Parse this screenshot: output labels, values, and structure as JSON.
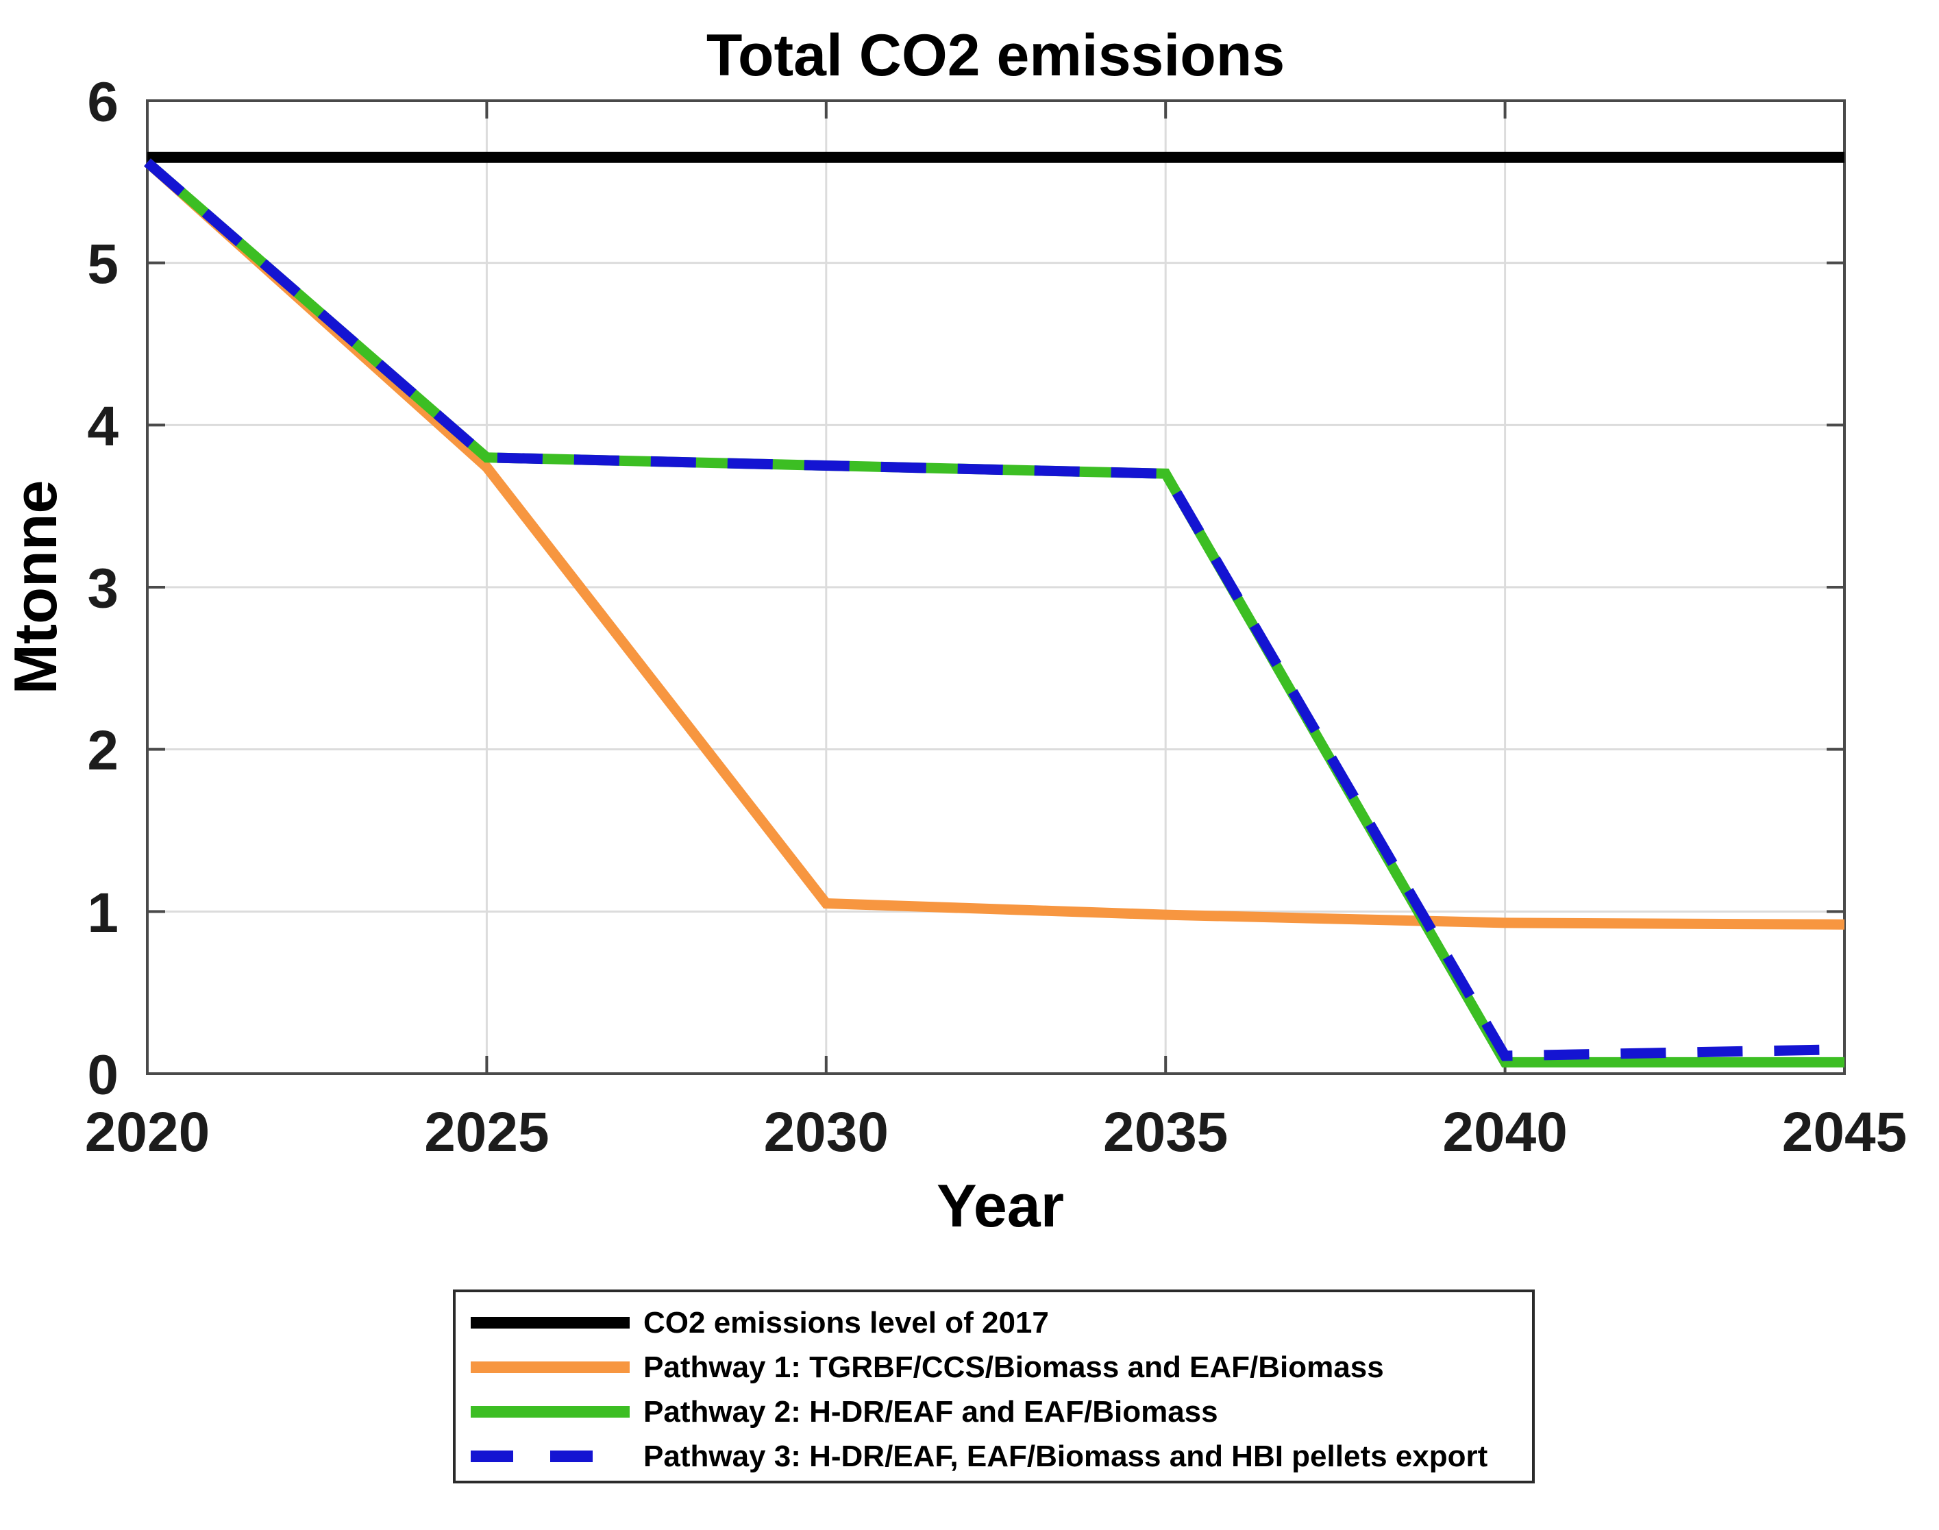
{
  "chart_data": {
    "type": "line",
    "title": "Total CO2 emissions",
    "xlabel": "Year",
    "ylabel": "Mtonne",
    "xlim": [
      2020,
      2045
    ],
    "ylim": [
      0,
      6
    ],
    "x_ticks": [
      2020,
      2025,
      2030,
      2035,
      2040,
      2045
    ],
    "y_ticks": [
      0,
      1,
      2,
      3,
      4,
      5,
      6
    ],
    "grid": true,
    "legend_position": "below-chart",
    "x": [
      2020,
      2025,
      2030,
      2035,
      2040,
      2045
    ],
    "series": [
      {
        "name": "CO2 emissions level of 2017",
        "color": "#000000",
        "style": "solid",
        "line_width": 16,
        "values": [
          5.65,
          5.65,
          5.65,
          5.65,
          5.65,
          5.65
        ]
      },
      {
        "name": "Pathway 1: TGRBF/CCS/Biomass and EAF/Biomass",
        "color": "#F79640",
        "style": "solid",
        "line_width": 15,
        "values": [
          5.62,
          3.74,
          1.05,
          0.98,
          0.93,
          0.92
        ]
      },
      {
        "name": "Pathway 2: H-DR/EAF and EAF/Biomass",
        "color": "#3CBE23",
        "style": "solid",
        "line_width": 15,
        "values": [
          5.62,
          3.8,
          3.75,
          3.7,
          0.07,
          0.07
        ]
      },
      {
        "name": "Pathway 3: H-DR/EAF, EAF/Biomass and HBI pellets export",
        "color": "#1414D2",
        "style": "dashed",
        "line_width": 15,
        "values": [
          5.62,
          3.8,
          3.75,
          3.7,
          0.11,
          0.15
        ]
      }
    ],
    "colors": {
      "grid": "#DCDCDC",
      "axis": "#4A4A4A",
      "tick_label": "#1C1C1C",
      "background": "#FFFFFF"
    }
  }
}
